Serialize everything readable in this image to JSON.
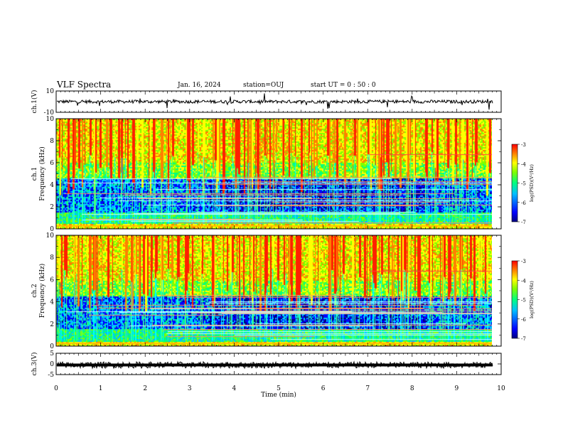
{
  "header": {
    "title": "VLF Spectra",
    "date": "Jan. 16, 2024",
    "station": "station=OUJ",
    "start": "start  UT =  0 : 50 : 0"
  },
  "chart_data": [
    {
      "type": "line",
      "panel": "ch1-waveform",
      "ylabel": "ch.1(V)",
      "ylim": [
        -10,
        10
      ],
      "y_ticks": [
        "10",
        "-10"
      ],
      "xlim": [
        0,
        10
      ],
      "series": [
        {
          "baseline": 0,
          "color": "#000000"
        }
      ]
    },
    {
      "type": "heatmap",
      "panel": "ch1-spectrogram",
      "ylabel_channel": "ch.1",
      "ylabel": "Frequency (kHz)",
      "ylim": [
        0,
        10
      ],
      "y_ticks": [
        "0",
        "2",
        "4",
        "6",
        "8",
        "10"
      ],
      "xlim": [
        0,
        9.8
      ],
      "colorbar": {
        "label": "log(PSD)(V²/Hz)",
        "range": [
          -7,
          -3
        ],
        "ticks": [
          "-3",
          "-4",
          "-5",
          "-6",
          "-7"
        ]
      }
    },
    {
      "type": "heatmap",
      "panel": "ch2-spectrogram",
      "ylabel_channel": "ch.2",
      "ylabel": "Frequency (kHz)",
      "ylim": [
        0,
        10
      ],
      "y_ticks": [
        "0",
        "2",
        "4",
        "6",
        "8",
        "10"
      ],
      "xlim": [
        0,
        9.8
      ],
      "colorbar": {
        "label": "log(PSD)(V²/Hz)",
        "range": [
          -7,
          -3
        ],
        "ticks": [
          "-3",
          "-4",
          "-5",
          "-6",
          "-7"
        ]
      }
    },
    {
      "type": "line",
      "panel": "ch3-waveform",
      "ylabel": "ch.3(V)",
      "ylim": [
        -5,
        5
      ],
      "y_ticks": [
        "5",
        "0",
        "-5"
      ],
      "xlim": [
        0,
        10
      ],
      "series": [
        {
          "baseline": -0.5,
          "color": "#000000"
        }
      ]
    }
  ],
  "x_axis": {
    "label": "Time (min)",
    "ticks": [
      "0",
      "1",
      "2",
      "3",
      "4",
      "5",
      "6",
      "7",
      "8",
      "9",
      "10"
    ]
  },
  "colors": {
    "colormap": [
      "#00007f",
      "#0000ff",
      "#00bfff",
      "#00ff7f",
      "#7fff00",
      "#ffff00",
      "#ff8000",
      "#ff0000"
    ]
  }
}
